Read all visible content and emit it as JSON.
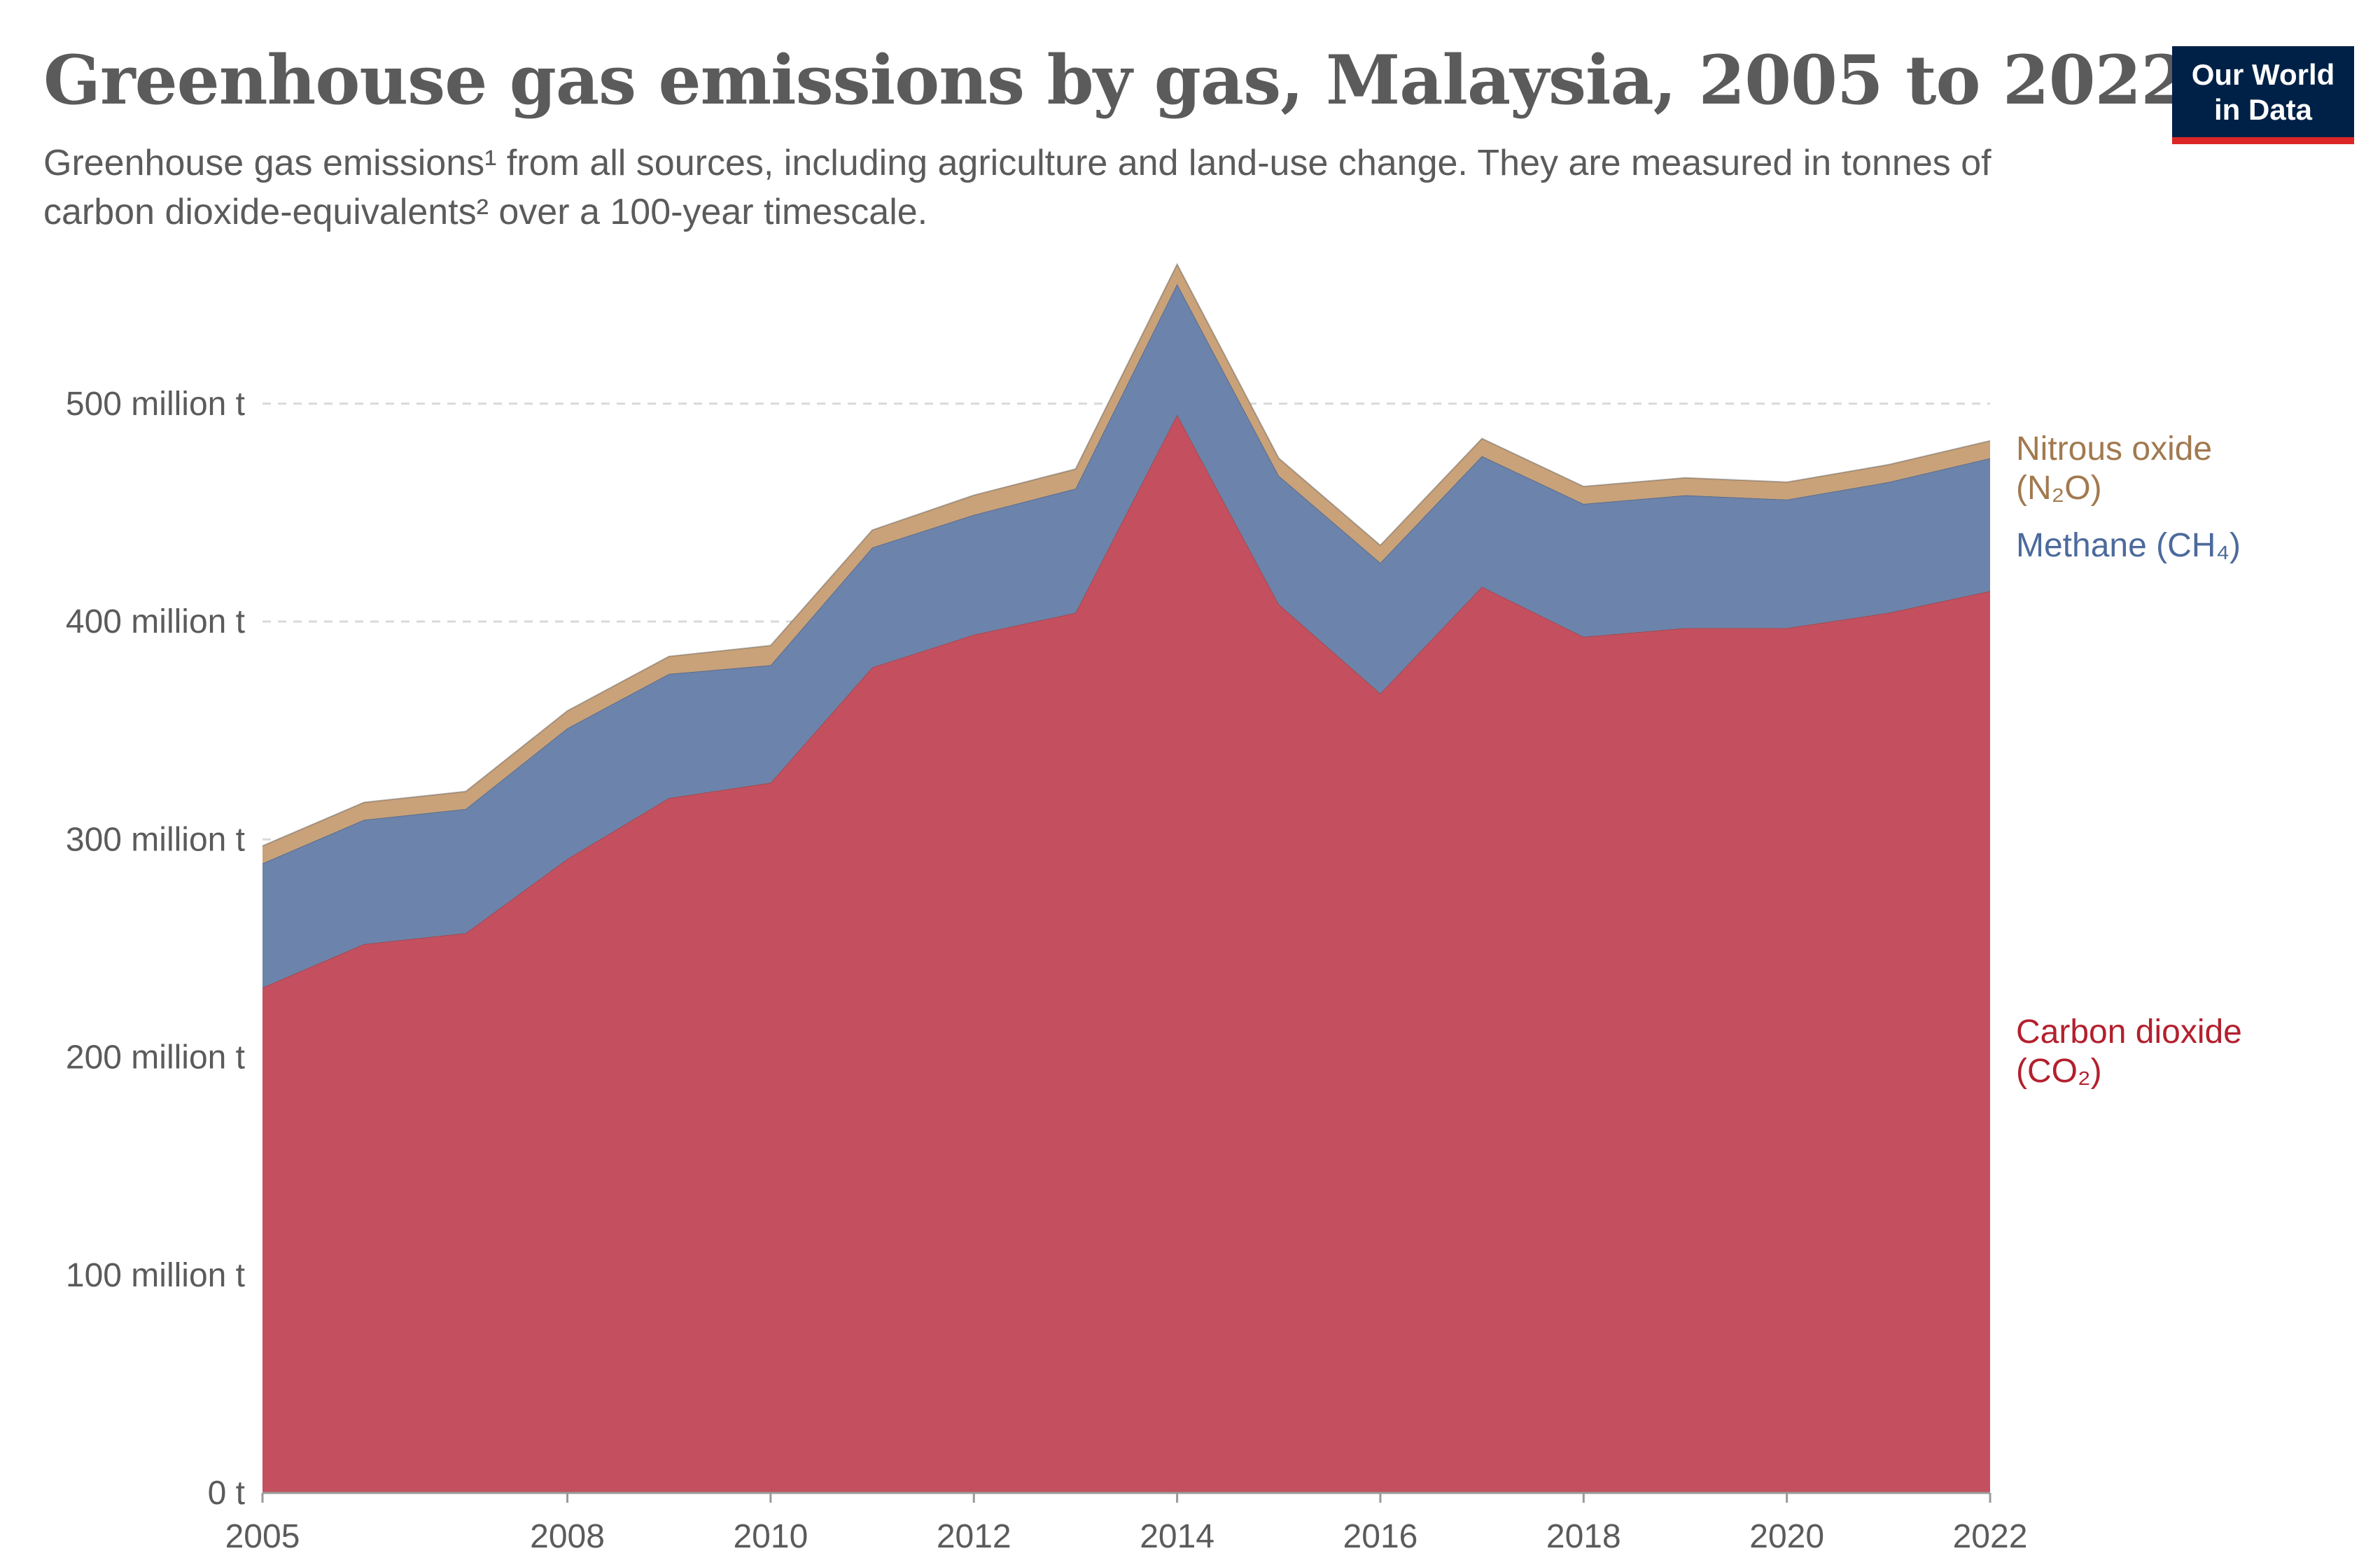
{
  "header": {
    "title": "Greenhouse gas emissions by gas, Malaysia, 2005 to 2022",
    "subtitle": "Greenhouse gas emissions¹ from all sources, including agriculture and land-use change. They are measured in tonnes of carbon dioxide-equivalents² over a 100-year timescale."
  },
  "logo": {
    "line1": "Our World",
    "line2": "in Data",
    "bg_color": "#002147",
    "accent_color": "#dc2626"
  },
  "chart_data": {
    "type": "area",
    "stacked": true,
    "title": "Greenhouse gas emissions by gas, Malaysia, 2005 to 2022",
    "xlabel": "",
    "ylabel": "",
    "x": [
      2005,
      2006,
      2007,
      2008,
      2009,
      2010,
      2011,
      2012,
      2013,
      2014,
      2015,
      2016,
      2017,
      2018,
      2019,
      2020,
      2021,
      2022
    ],
    "xlim": [
      2005,
      2022
    ],
    "ylim": [
      0,
      560
    ],
    "unit": "million t",
    "x_ticks": [
      "2005",
      "2008",
      "2010",
      "2012",
      "2014",
      "2016",
      "2018",
      "2020",
      "2022"
    ],
    "y_ticks": [
      {
        "value": 0,
        "label": "0 t"
      },
      {
        "value": 100,
        "label": "100 million t"
      },
      {
        "value": 200,
        "label": "200 million t"
      },
      {
        "value": 300,
        "label": "300 million t"
      },
      {
        "value": 400,
        "label": "400 million t"
      },
      {
        "value": 500,
        "label": "500 million t"
      }
    ],
    "grid": "horizontal dashed",
    "legend": "right, inline labels",
    "series": [
      {
        "name": "Carbon dioxide (CO₂)",
        "label_lines": [
          "Carbon dioxide",
          "(CO₂)"
        ],
        "color": "#c4505f",
        "label_color": "#b3202e",
        "values": [
          232,
          252,
          257,
          291,
          319,
          326,
          379,
          394,
          404,
          495,
          408,
          367,
          416,
          393,
          397,
          397,
          404,
          414
        ]
      },
      {
        "name": "Methane (CH₄)",
        "label_lines": [
          "Methane (CH₄)"
        ],
        "color": "#6c83ab",
        "label_color": "#4c6a9c",
        "values": [
          57,
          57,
          57,
          60,
          57,
          54,
          55,
          55,
          57,
          60,
          59,
          60,
          60,
          61,
          61,
          59,
          60,
          61
        ]
      },
      {
        "name": "Nitrous oxide (N₂O)",
        "label_lines": [
          "Nitrous oxide",
          "(N₂O)"
        ],
        "color": "#c9a27a",
        "label_color": "#a2794f",
        "values": [
          8,
          8,
          8,
          8,
          8,
          9,
          8,
          9,
          9,
          9,
          8,
          8,
          8,
          8,
          8,
          8,
          8,
          8
        ]
      }
    ]
  }
}
